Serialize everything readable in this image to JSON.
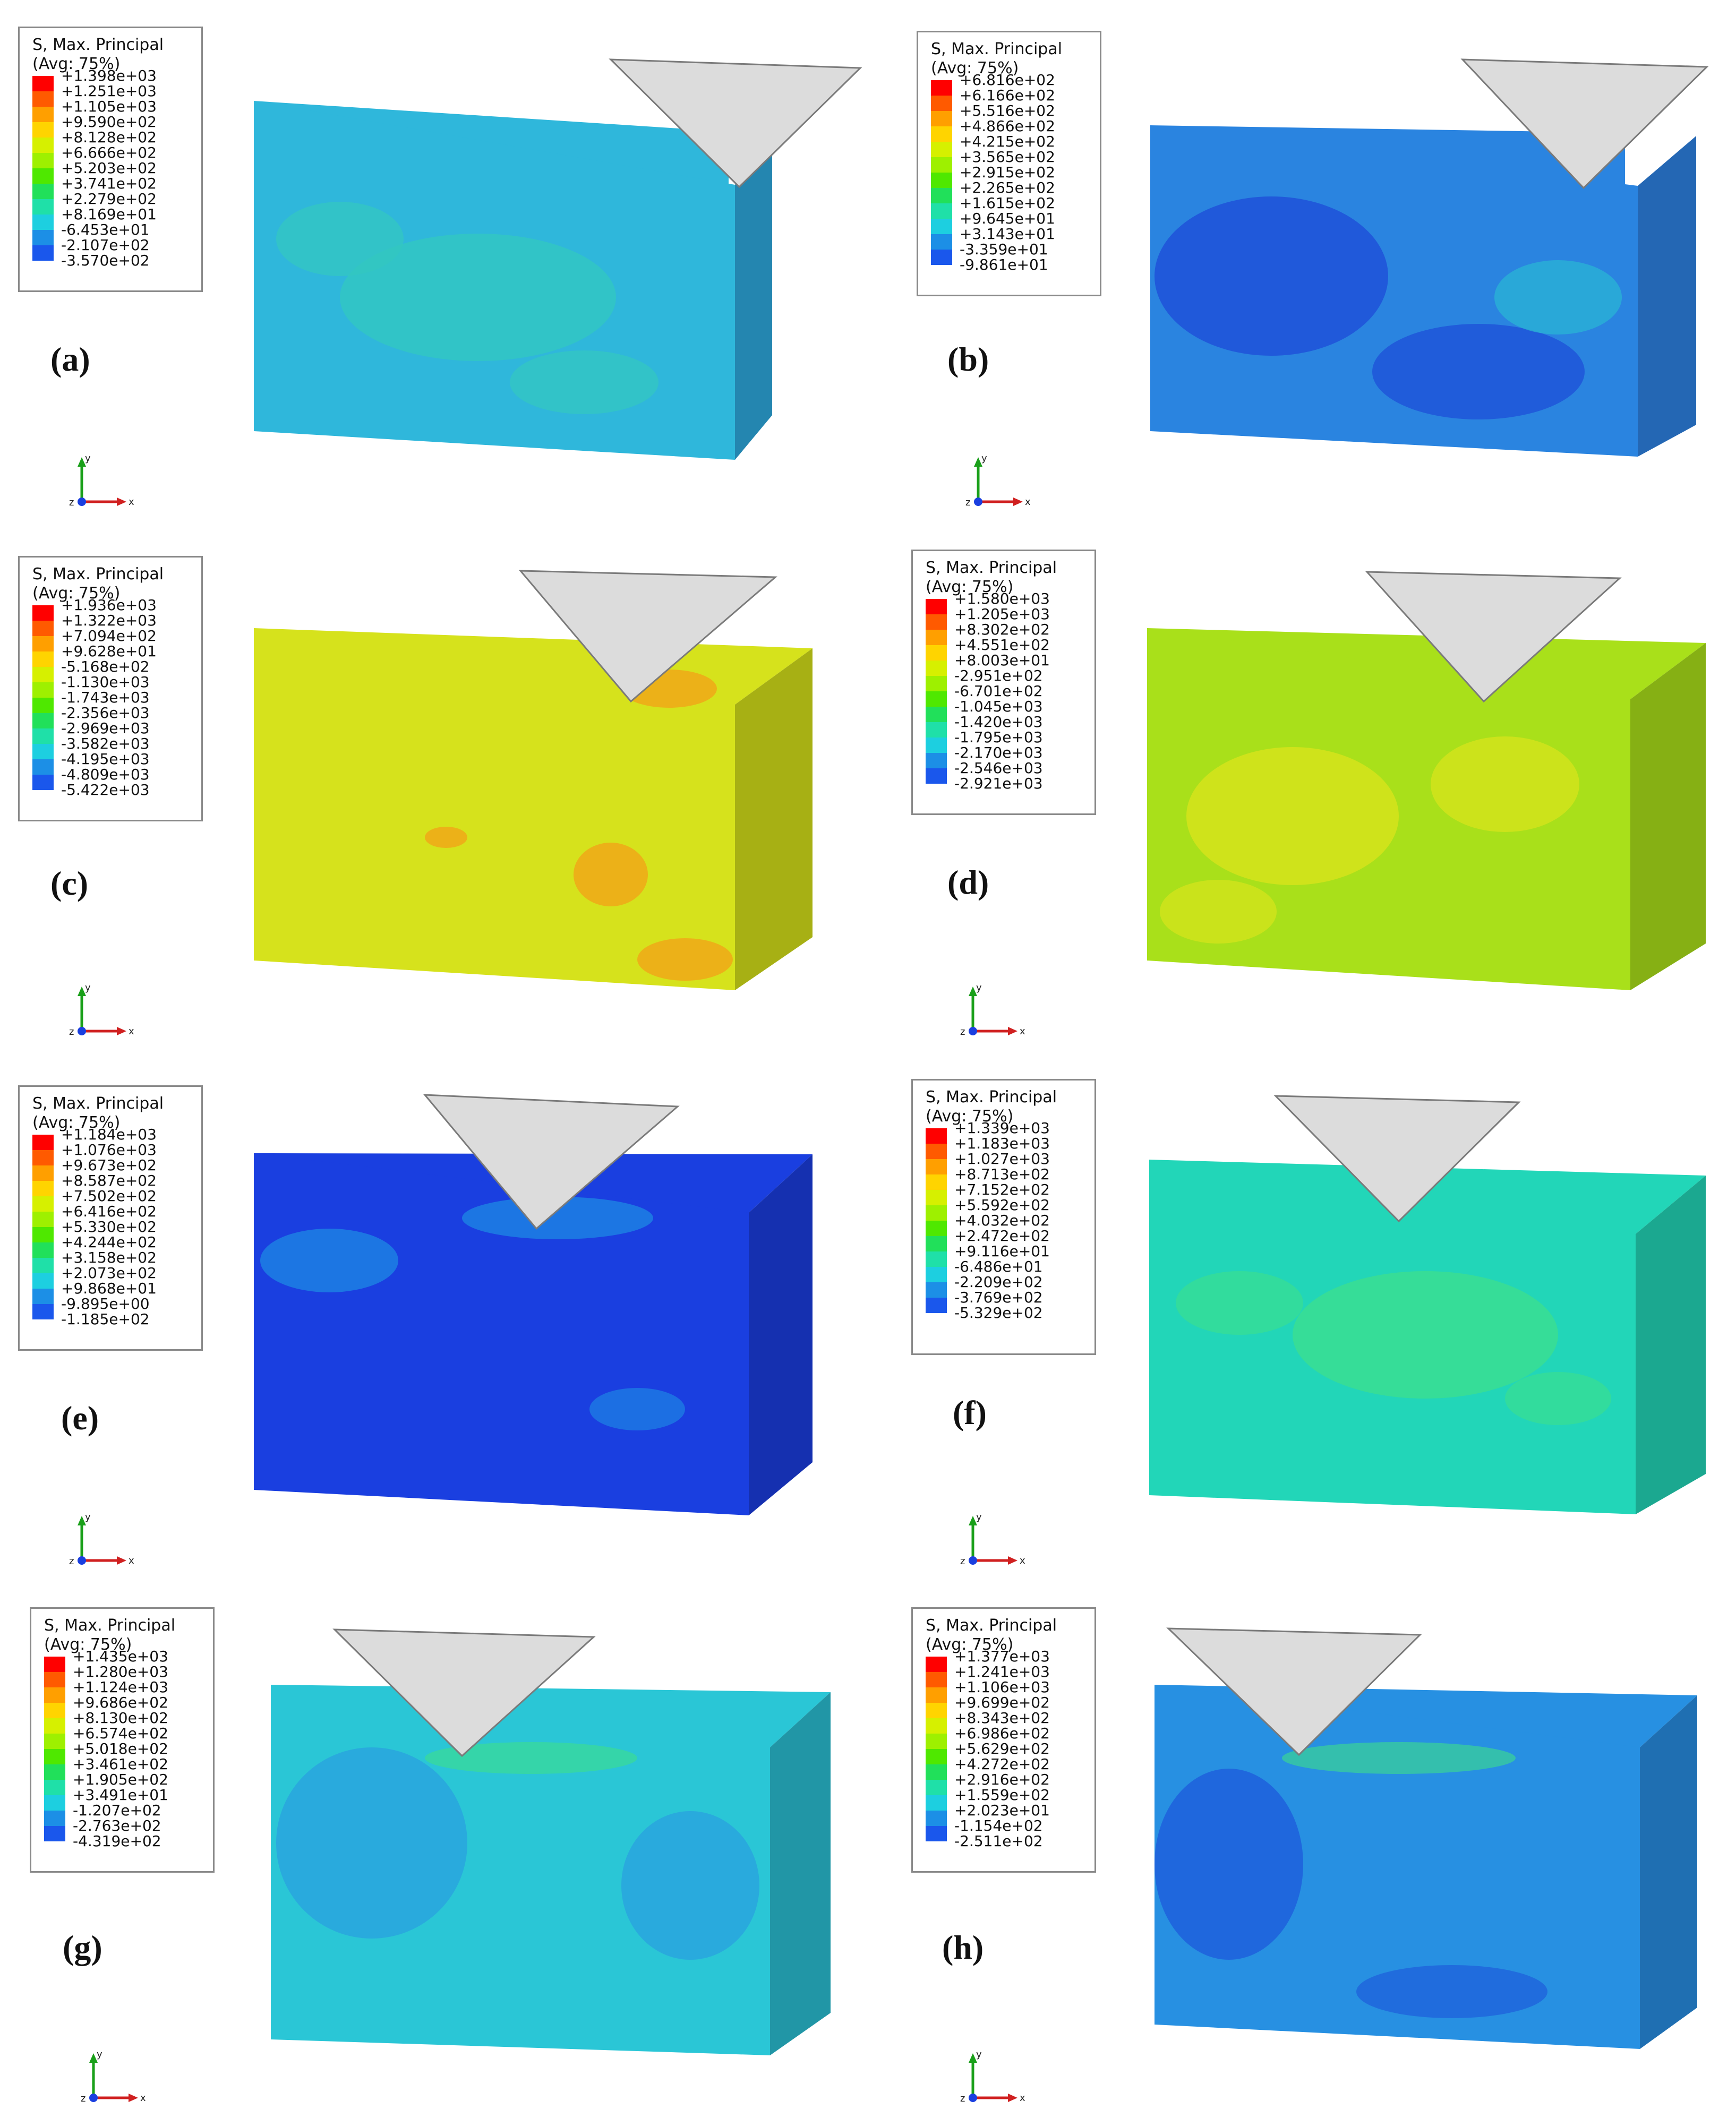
{
  "legend_title_line1": "S, Max. Principal",
  "legend_title_line2": "(Avg: 75%)",
  "axis_labels": {
    "x": "x",
    "y": "y",
    "z": "z"
  },
  "colormap": [
    "#ff0000",
    "#ff5a00",
    "#ff9f00",
    "#ffd400",
    "#d6f000",
    "#9ef000",
    "#4fe800",
    "#21e05a",
    "#1fe0a8",
    "#1dcfe0",
    "#1c8fe6",
    "#1a57ec",
    "#1010f0"
  ],
  "indenter_color": "#dcdcdc",
  "panels": [
    {
      "label": "(a)",
      "legend": [
        "+1.398e+03",
        "+1.251e+03",
        "+1.105e+03",
        "+9.590e+02",
        "+8.128e+02",
        "+6.666e+02",
        "+5.203e+02",
        "+3.741e+02",
        "+2.279e+02",
        "+8.169e+01",
        "-6.453e+01",
        "-2.107e+02",
        "-3.570e+02"
      ],
      "block_color": "#2fb7db",
      "patch_color": "#33c8c0"
    },
    {
      "label": "(b)",
      "legend": [
        "+6.816e+02",
        "+6.166e+02",
        "+5.516e+02",
        "+4.866e+02",
        "+4.215e+02",
        "+3.565e+02",
        "+2.915e+02",
        "+2.265e+02",
        "+1.615e+02",
        "+9.645e+01",
        "+3.143e+01",
        "-3.359e+01",
        "-9.861e+01"
      ],
      "block_color": "#2a84e0",
      "patch_color": "#1e4fd8"
    },
    {
      "label": "(c)",
      "legend": [
        "+1.936e+03",
        "+1.322e+03",
        "+7.094e+02",
        "+9.628e+01",
        "-5.168e+02",
        "-1.130e+03",
        "-1.743e+03",
        "-2.356e+03",
        "-2.969e+03",
        "-3.582e+03",
        "-4.195e+03",
        "-4.809e+03",
        "-5.422e+03"
      ],
      "block_color": "#d6e21c",
      "patch_color": "#f0a818"
    },
    {
      "label": "(d)",
      "legend": [
        "+1.580e+03",
        "+1.205e+03",
        "+8.302e+02",
        "+4.551e+02",
        "+8.003e+01",
        "-2.951e+02",
        "-6.701e+02",
        "-1.045e+03",
        "-1.420e+03",
        "-1.795e+03",
        "-2.170e+03",
        "-2.546e+03",
        "-2.921e+03"
      ],
      "block_color": "#a9e01a",
      "patch_color": "#d8e41c"
    },
    {
      "label": "(e)",
      "legend": [
        "+1.184e+03",
        "+1.076e+03",
        "+9.673e+02",
        "+8.587e+02",
        "+7.502e+02",
        "+6.416e+02",
        "+5.330e+02",
        "+4.244e+02",
        "+3.158e+02",
        "+2.073e+02",
        "+9.868e+01",
        "-9.895e+00",
        "-1.185e+02"
      ],
      "block_color": "#1a3fe0",
      "patch_color": "#1e8fe4"
    },
    {
      "label": "(f)",
      "legend": [
        "+1.339e+03",
        "+1.183e+03",
        "+1.027e+03",
        "+8.713e+02",
        "+7.152e+02",
        "+5.592e+02",
        "+4.032e+02",
        "+2.472e+02",
        "+9.116e+01",
        "-6.486e+01",
        "-2.209e+02",
        "-3.769e+02",
        "-5.329e+02"
      ],
      "block_color": "#22d6b8",
      "patch_color": "#3ee08a"
    },
    {
      "label": "(g)",
      "legend": [
        "+1.435e+03",
        "+1.280e+03",
        "+1.124e+03",
        "+9.686e+02",
        "+8.130e+02",
        "+6.574e+02",
        "+5.018e+02",
        "+3.461e+02",
        "+1.905e+02",
        "+3.491e+01",
        "-1.207e+02",
        "-2.763e+02",
        "-4.319e+02"
      ],
      "block_color": "#2ac6d6",
      "patch_color": "#2a9ee0"
    },
    {
      "label": "(h)",
      "legend": [
        "+1.377e+03",
        "+1.241e+03",
        "+1.106e+03",
        "+9.699e+02",
        "+8.343e+02",
        "+6.986e+02",
        "+5.629e+02",
        "+4.272e+02",
        "+2.916e+02",
        "+1.559e+02",
        "+2.023e+01",
        "-1.154e+02",
        "-2.511e+02"
      ],
      "block_color": "#2790e2",
      "patch_color": "#1e5ddc"
    }
  ]
}
